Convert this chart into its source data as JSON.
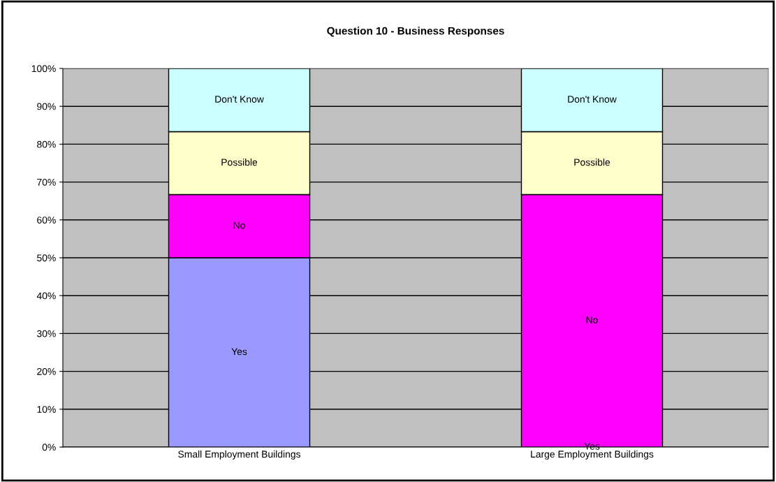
{
  "chart_data": {
    "type": "bar",
    "title": "Question 10 - Business Responses",
    "stacked": true,
    "categories": [
      "Small Employment Buildings",
      "Large Employment Buildings"
    ],
    "series": [
      {
        "name": "Yes",
        "color": "#9999ff",
        "values": [
          50,
          0
        ]
      },
      {
        "name": "No",
        "color": "#ff00ff",
        "values": [
          16.7,
          66.7
        ]
      },
      {
        "name": "Possible",
        "color": "#ffffcc",
        "values": [
          16.6,
          16.6
        ]
      },
      {
        "name": "Don't Know",
        "color": "#ccffff",
        "values": [
          16.7,
          16.7
        ]
      }
    ],
    "ylim": [
      0,
      100
    ],
    "yticks": [
      {
        "value": 0,
        "label": "0%"
      },
      {
        "value": 10,
        "label": "10%"
      },
      {
        "value": 20,
        "label": "20%"
      },
      {
        "value": 30,
        "label": "30%"
      },
      {
        "value": 40,
        "label": "40%"
      },
      {
        "value": 50,
        "label": "50%"
      },
      {
        "value": 60,
        "label": "60%"
      },
      {
        "value": 70,
        "label": "70%"
      },
      {
        "value": 80,
        "label": "80%"
      },
      {
        "value": 90,
        "label": "90%"
      },
      {
        "value": 100,
        "label": "100%"
      }
    ],
    "grid": "y",
    "legend": false
  }
}
